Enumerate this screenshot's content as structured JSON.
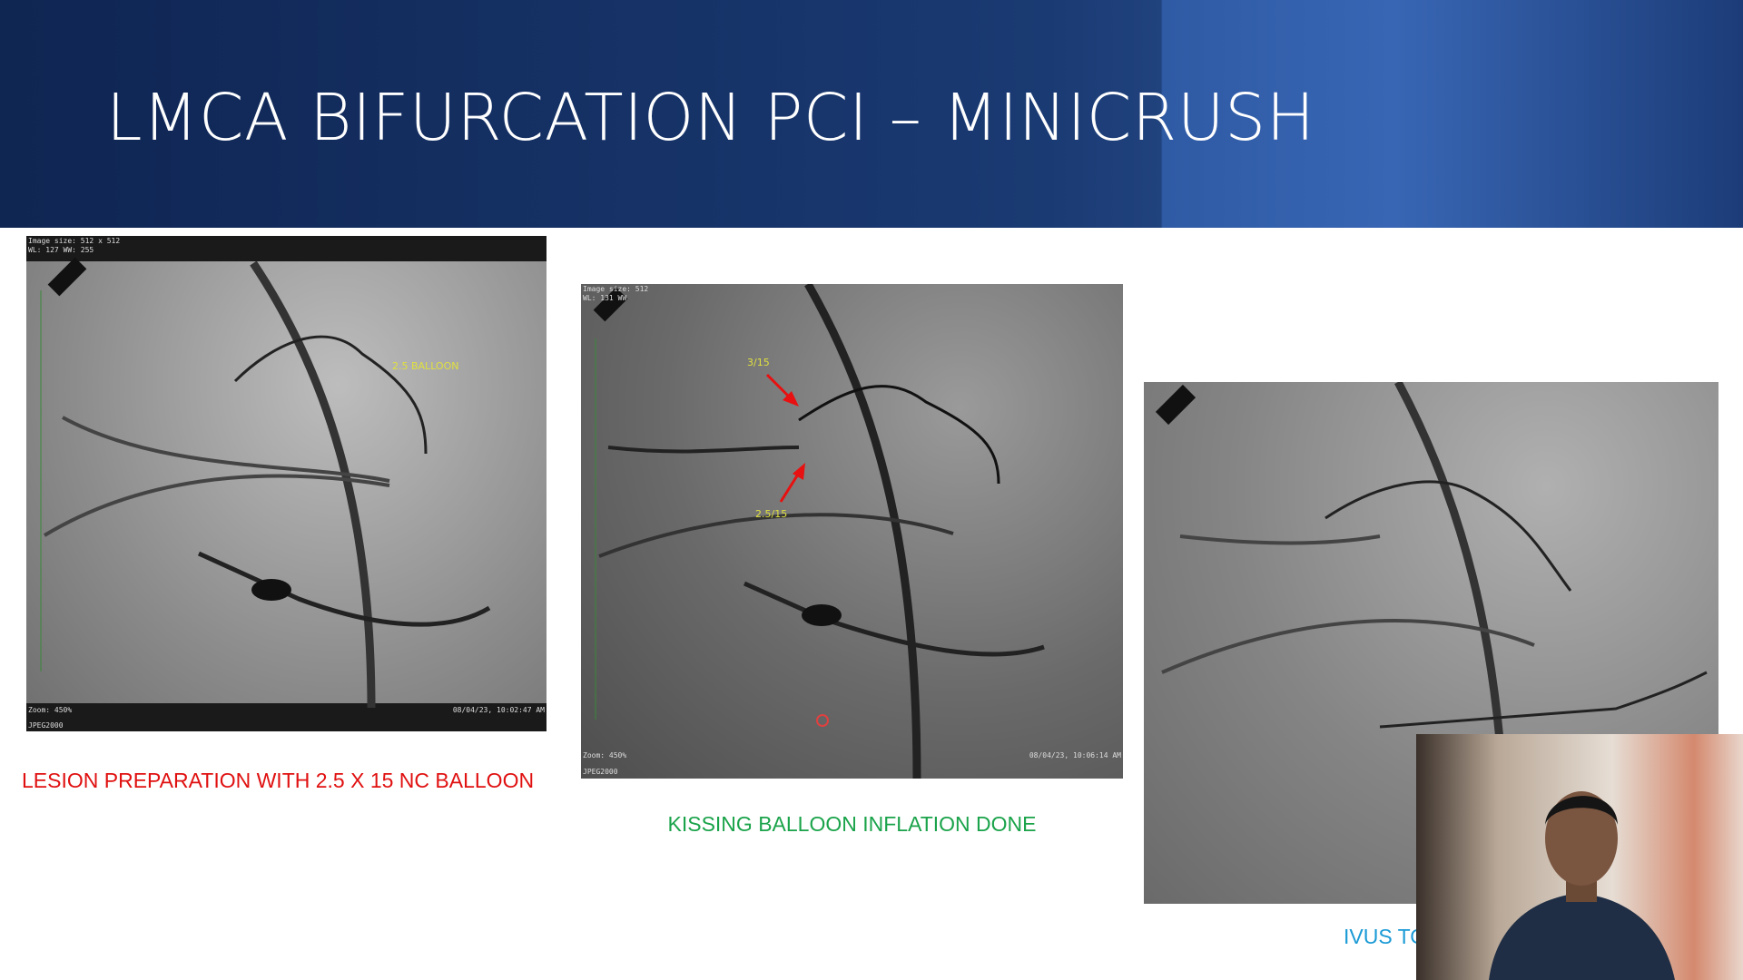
{
  "header": {
    "title": "LMCA BIFURCATION PCI – MINICRUSH"
  },
  "panels": [
    {
      "overlay": [
        "Image size: 512 x 512",
        "WL: 127 WW: 255",
        "Zoom: 450%",
        "08/04/23, 10:02:47 AM",
        "JPEG2000"
      ],
      "annotations": [
        "2.5 BALLOON"
      ],
      "caption": "LESION PREPARATION WITH 2.5 X 15 NC BALLOON"
    },
    {
      "overlay": [
        "Image size: 512",
        "WL: 131 WW",
        "Zoom: 450%",
        "08/04/23, 10:06:14 AM",
        "JPEG2000"
      ],
      "annotations": [
        "3/15",
        "2.5/15"
      ],
      "caption": "KISSING BALLOON INFLATION DONE"
    },
    {
      "overlay": [],
      "annotations": [],
      "caption": "IVUS TO"
    }
  ]
}
